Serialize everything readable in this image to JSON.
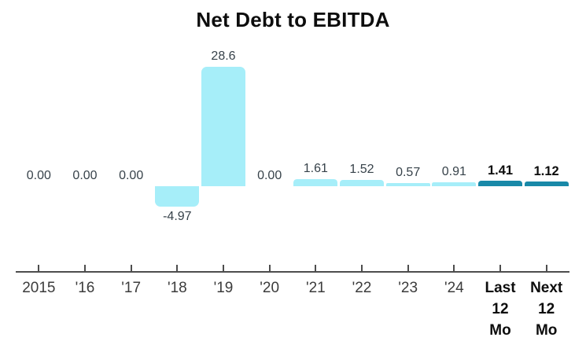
{
  "title": "Net Debt to EBITDA",
  "chart_data": {
    "type": "bar",
    "title": "Net Debt to EBITDA",
    "categories": [
      "2015",
      "'16",
      "'17",
      "'18",
      "'19",
      "'20",
      "'21",
      "'22",
      "'23",
      "'24",
      "Last 12 Mo",
      "Next 12 Mo"
    ],
    "values": [
      0.0,
      0.0,
      0.0,
      -4.97,
      28.6,
      0.0,
      1.61,
      1.52,
      0.57,
      0.91,
      1.41,
      1.12
    ],
    "labels": [
      "0.00",
      "0.00",
      "0.00",
      "-4.97",
      "28.6",
      "0.00",
      "1.61",
      "1.52",
      "0.57",
      "0.91",
      "1.41",
      "1.12"
    ],
    "emphasis": [
      false,
      false,
      false,
      false,
      false,
      false,
      false,
      false,
      false,
      false,
      true,
      true
    ],
    "xlabel": "",
    "ylabel": "",
    "ylim": [
      -20.5,
      30
    ],
    "grid": false,
    "legend": false,
    "colors": {
      "bar_light": "#a6eef9",
      "bar_dark": "#1989a8",
      "value_label": "#37424a",
      "value_label_emph": "#0d0d0d",
      "axis_line": "#4d4d4d",
      "axis_label": "#3c3c3c",
      "title": "#0d0d0d",
      "background": "#ffffff"
    }
  }
}
